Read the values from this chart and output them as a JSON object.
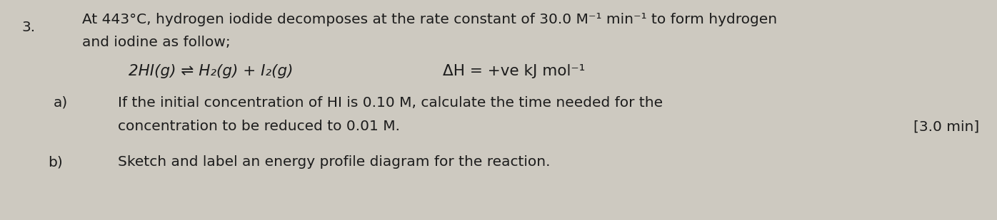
{
  "bg_color": "#cdc9c0",
  "question_number": "3.",
  "line1": "At 443°C, hydrogen iodide decomposes at the rate constant of 30.0 M⁻¹ min⁻¹ to form hydrogen",
  "line2": "and iodine as follow;",
  "equation_left": "2HI(g) ⇌ H₂(g) + I₂(g)",
  "equation_right": "ΔH = +ve kJ mol⁻¹",
  "part_a_label": "a)",
  "part_a_text1": "If the initial concentration of HI is 0.10 M, calculate the time needed for the",
  "part_a_text2": "concentration to be reduced to 0.01 M.",
  "part_a_answer": "[3.0 min]",
  "part_b_label": "b)",
  "part_b_text": "Sketch and label an energy profile diagram for the reaction.",
  "font_size_main": 14.5,
  "font_size_eq": 15.5,
  "text_color": "#1c1c1c",
  "fig_width": 13.96,
  "fig_height": 3.09,
  "dpi": 100
}
